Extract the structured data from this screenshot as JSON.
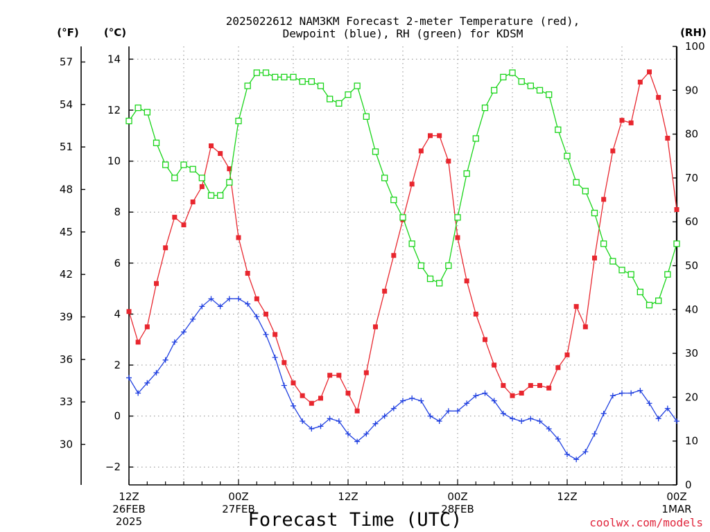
{
  "chart_data": {
    "type": "line",
    "title_line1": "2025022612 NAM3KM Forecast 2-meter Temperature (red),",
    "title_line2": "Dewpoint (blue), RH (green) for KDSM",
    "xlabel": "Forecast Time (UTC)",
    "credit": "coolwx.com/models",
    "unit_f": "(°F)",
    "unit_c": "(°C)",
    "unit_rh": "(RH)",
    "x_ticks": [
      {
        "hour": 0,
        "l1": "12Z",
        "l2": "26FEB",
        "l3": "2025"
      },
      {
        "hour": 12,
        "l1": "00Z",
        "l2": "27FEB",
        "l3": ""
      },
      {
        "hour": 24,
        "l1": "12Z",
        "l2": "",
        "l3": ""
      },
      {
        "hour": 36,
        "l1": "00Z",
        "l2": "28FEB",
        "l3": ""
      },
      {
        "hour": 48,
        "l1": "12Z",
        "l2": "",
        "l3": ""
      },
      {
        "hour": 60,
        "l1": "00Z",
        "l2": "1MAR",
        "l3": ""
      }
    ],
    "xlim": [
      0,
      60
    ],
    "ylim_c": [
      -2.7,
      14.5
    ],
    "yticks_c": [
      -2,
      0,
      2,
      4,
      6,
      8,
      10,
      12,
      14
    ],
    "yticks_f": [
      30,
      33,
      36,
      39,
      42,
      45,
      48,
      51,
      54,
      57
    ],
    "ylim_rh": [
      0,
      100
    ],
    "yticks_rh": [
      0,
      10,
      20,
      30,
      40,
      50,
      60,
      70,
      80,
      90,
      100
    ],
    "grid": true,
    "colors": {
      "temperature": "#e8262e",
      "dewpoint": "#1f3fe0",
      "rh": "#18d418"
    },
    "series": [
      {
        "key": "temperature",
        "axis": "c",
        "marker": "filled-square",
        "values": [
          4.1,
          2.9,
          3.5,
          5.2,
          6.6,
          7.8,
          7.5,
          8.4,
          9.0,
          10.6,
          10.3,
          9.7,
          7.0,
          5.6,
          4.6,
          4.0,
          3.2,
          2.1,
          1.3,
          0.8,
          0.5,
          0.7,
          1.6,
          1.6,
          0.9,
          0.2,
          1.7,
          3.5,
          4.9,
          6.3,
          7.7,
          9.1,
          10.4,
          11.0,
          11.0,
          10.0,
          7.0,
          5.3,
          4.0,
          3.0,
          2.0,
          1.2,
          0.8,
          0.9,
          1.2,
          1.2,
          1.1,
          1.9,
          2.4,
          4.3,
          3.5,
          6.2,
          8.5,
          10.4,
          11.6,
          11.5,
          13.1,
          13.5,
          12.5,
          10.9,
          8.1
        ]
      },
      {
        "key": "dewpoint",
        "axis": "c",
        "marker": "plus",
        "values": [
          1.5,
          0.9,
          1.3,
          1.7,
          2.2,
          2.9,
          3.3,
          3.8,
          4.3,
          4.6,
          4.3,
          4.6,
          4.6,
          4.4,
          3.9,
          3.2,
          2.3,
          1.2,
          0.4,
          -0.2,
          -0.5,
          -0.4,
          -0.1,
          -0.2,
          -0.7,
          -1.0,
          -0.7,
          -0.3,
          0.0,
          0.3,
          0.6,
          0.7,
          0.6,
          0.0,
          -0.2,
          0.2,
          0.2,
          0.5,
          0.8,
          0.9,
          0.6,
          0.1,
          -0.1,
          -0.2,
          -0.1,
          -0.2,
          -0.5,
          -0.9,
          -1.5,
          -1.7,
          -1.4,
          -0.7,
          0.1,
          0.8,
          0.9,
          0.9,
          1.0,
          0.5,
          -0.1,
          0.3,
          -0.2
        ]
      },
      {
        "key": "rh",
        "axis": "rh",
        "marker": "open-square",
        "values": [
          83,
          86,
          85,
          78,
          73,
          70,
          73,
          72,
          70,
          66,
          66,
          69,
          83,
          91,
          94,
          94,
          93,
          93,
          93,
          92,
          92,
          91,
          88,
          87,
          89,
          91,
          84,
          76,
          70,
          65,
          61,
          55,
          50,
          47,
          46,
          50,
          61,
          71,
          79,
          86,
          90,
          93,
          94,
          92,
          91,
          90,
          89,
          81,
          75,
          69,
          67,
          62,
          55,
          51,
          49,
          48,
          44,
          41,
          42,
          48,
          55
        ]
      }
    ]
  }
}
